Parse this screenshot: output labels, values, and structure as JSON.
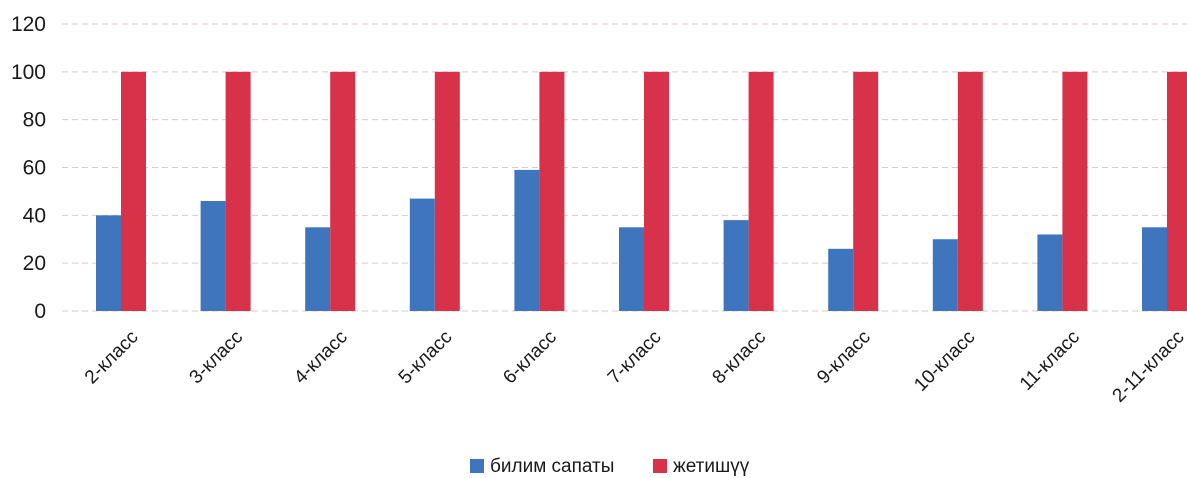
{
  "chart_data": {
    "type": "bar",
    "categories": [
      "2-класс",
      "3-класс",
      "4-класс",
      "5-класс",
      "6-класс",
      "7-класс",
      "8-класс",
      "9-класс",
      "10-класс",
      "11-класс",
      "2-11-класс"
    ],
    "series": [
      {
        "name": "билим сапаты",
        "values": [
          40,
          46,
          35,
          47,
          59,
          35,
          38,
          26,
          30,
          32,
          35
        ],
        "color": "#3f75bd"
      },
      {
        "name": "жетишүү",
        "values": [
          100,
          100,
          100,
          100,
          100,
          100,
          100,
          100,
          100,
          100,
          100
        ],
        "color": "#d8324a"
      }
    ],
    "yticks": [
      0,
      20,
      40,
      60,
      80,
      100,
      120
    ],
    "ylim": [
      0,
      120
    ],
    "grid": true,
    "legend_position": "bottom"
  }
}
